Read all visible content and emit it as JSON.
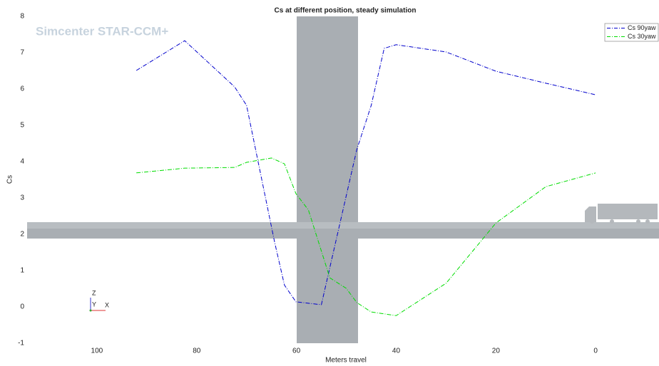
{
  "watermark": "Simcenter STAR-CCM+",
  "triad": {
    "z": "Z",
    "y": "Y",
    "x": "X"
  },
  "chart_data": {
    "type": "line",
    "title": "Cs at different position, steady simulation",
    "x_label": "Meters travel",
    "y_label": "Cs",
    "xlim": [
      114,
      -12.7
    ],
    "ylim": [
      -1,
      8
    ],
    "xticks": [
      100,
      80,
      60,
      40,
      20,
      0
    ],
    "yticks": [
      -1,
      0,
      1,
      2,
      3,
      4,
      5,
      6,
      7,
      8
    ],
    "legend": "top-right",
    "series": [
      {
        "name": "Cs 90yaw",
        "color": "#0000cc",
        "x": [
          92.1,
          82.4,
          72.4,
          70,
          64.4,
          62.4,
          60.1,
          55,
          47.9,
          45,
          42.4,
          40,
          30,
          20,
          10,
          0
        ],
        "values": [
          6.51,
          7.33,
          6.06,
          5.55,
          1.8,
          0.6,
          0.14,
          0.06,
          4.33,
          5.55,
          7.12,
          7.22,
          7.02,
          6.49,
          6.16,
          5.84
        ]
      },
      {
        "name": "Cs 30yaw",
        "color": "#00dd00",
        "x": [
          92.1,
          82.4,
          72.4,
          70,
          65,
          62.4,
          60.1,
          57.6,
          53.3,
          50,
          47.9,
          45,
          40,
          30,
          20,
          10,
          0
        ],
        "values": [
          3.69,
          3.82,
          3.84,
          3.98,
          4.1,
          3.94,
          3.12,
          2.67,
          0.8,
          0.51,
          0.12,
          -0.14,
          -0.24,
          0.65,
          2.31,
          3.31,
          3.69
        ]
      }
    ]
  }
}
